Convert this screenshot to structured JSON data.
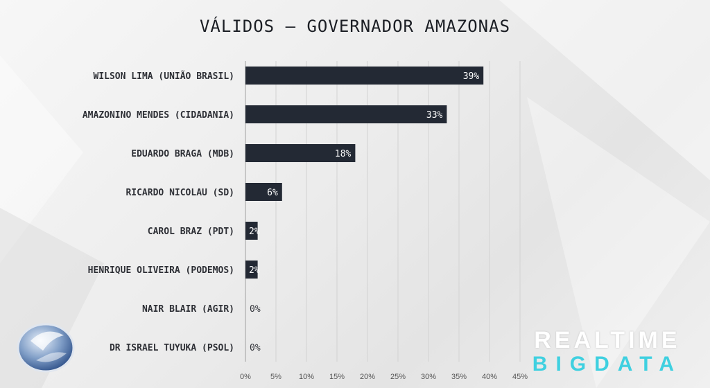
{
  "chart_data": {
    "type": "bar",
    "orientation": "horizontal",
    "title": "VÁLIDOS — GOVERNADOR AMAZONAS",
    "categories": [
      "WILSON LIMA (UNIÃO BRASIL)",
      "AMAZONINO MENDES (CIDADANIA)",
      "EDUARDO BRAGA (MDB)",
      "RICARDO NICOLAU (SD)",
      "CAROL BRAZ (PDT)",
      "HENRIQUE OLIVEIRA (PODEMOS)",
      "NAIR BLAIR (AGIR)",
      "DR ISRAEL TUYUKA (PSOL)"
    ],
    "values": [
      39,
      33,
      18,
      6,
      2,
      2,
      0,
      0
    ],
    "value_labels": [
      "39%",
      "33%",
      "18%",
      "6%",
      "2%",
      "2%",
      "0%",
      "0%"
    ],
    "xticks": [
      0,
      5,
      10,
      15,
      20,
      25,
      30,
      35,
      40,
      45
    ],
    "xtick_labels": [
      "0%",
      "5%",
      "10%",
      "15%",
      "20%",
      "25%",
      "30%",
      "35%",
      "40%",
      "45%"
    ],
    "xlim": [
      0,
      45
    ],
    "grid": true,
    "bar_color": "#232934"
  },
  "brand": {
    "line1": "REALTIME",
    "line2": "BIGDATA",
    "line2_color": "#3fd0e0"
  },
  "network_logo_icon": "record-tv-logo-icon"
}
